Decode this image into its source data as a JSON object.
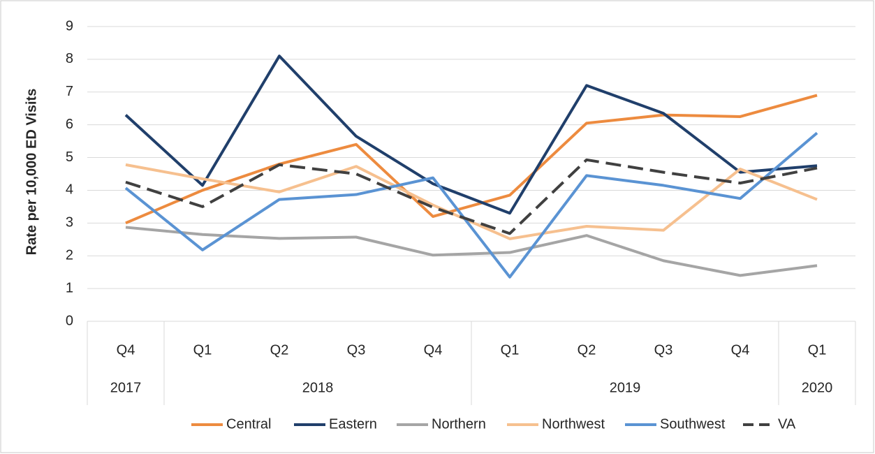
{
  "chart_data": {
    "type": "line",
    "y_label": "Rate per 10,000 ED Visits",
    "categories": [
      "Q4",
      "Q1",
      "Q2",
      "Q3",
      "Q4",
      "Q1",
      "Q2",
      "Q3",
      "Q4",
      "Q1"
    ],
    "x_groups": [
      "2017",
      "2018",
      null,
      null,
      null,
      "2019",
      null,
      null,
      null,
      "2020"
    ],
    "ylim": [
      0,
      9
    ],
    "yticks": [
      0,
      1,
      2,
      3,
      4,
      5,
      6,
      7,
      8,
      9
    ],
    "grid": true,
    "legend": "bottom",
    "series": [
      {
        "name": "Central",
        "color": "#ed8b3f",
        "values": [
          3.0,
          4.0,
          4.8,
          5.4,
          3.2,
          3.85,
          6.05,
          6.3,
          6.25,
          6.9
        ]
      },
      {
        "name": "Eastern",
        "color": "#203f6b",
        "values": [
          6.3,
          4.15,
          8.1,
          5.65,
          4.2,
          3.3,
          7.2,
          6.35,
          4.55,
          4.75
        ]
      },
      {
        "name": "Northern",
        "color": "#a5a5a5",
        "values": [
          2.87,
          2.65,
          2.53,
          2.57,
          2.02,
          2.1,
          2.62,
          1.85,
          1.4,
          1.7
        ]
      },
      {
        "name": "Northwest",
        "color": "#f6c08f",
        "values": [
          4.78,
          4.35,
          3.95,
          4.73,
          3.55,
          2.52,
          2.9,
          2.78,
          4.65,
          3.72
        ]
      },
      {
        "name": "Southwest",
        "color": "#5a93d3",
        "values": [
          4.07,
          2.18,
          3.72,
          3.87,
          4.38,
          1.35,
          4.45,
          4.15,
          3.75,
          5.75
        ]
      },
      {
        "name": "VA",
        "color": "#404040",
        "dashed": true,
        "values": [
          4.25,
          3.5,
          4.78,
          4.5,
          3.48,
          2.68,
          4.93,
          4.55,
          4.22,
          4.68
        ]
      }
    ]
  }
}
